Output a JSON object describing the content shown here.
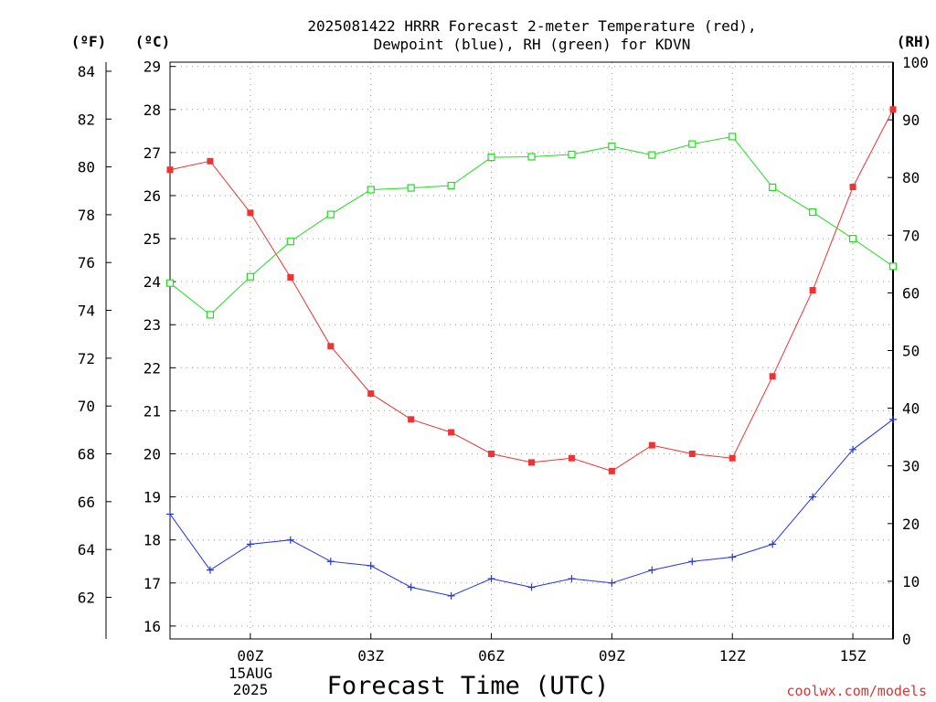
{
  "chart_data": {
    "type": "line",
    "title_line1": "2025081422 HRRR Forecast 2-meter Temperature (red),",
    "title_line2": "Dewpoint (blue), RH (green) for KDVN",
    "xlabel": "Forecast Time (UTC)",
    "credit": "coolwx.com/models",
    "unit_labels": {
      "fahrenheit": "(ºF)",
      "celsius": "(ºC)",
      "rh": "(RH)"
    },
    "x_ticks": [
      "00Z",
      "03Z",
      "06Z",
      "09Z",
      "12Z",
      "15Z"
    ],
    "x_date_lines": [
      "15AUG",
      "2025"
    ],
    "x_hours": [
      -2,
      -1,
      0,
      1,
      2,
      3,
      4,
      5,
      6,
      7,
      8,
      9,
      10,
      11,
      12,
      13,
      14,
      15,
      16
    ],
    "celsius_ticks": [
      16,
      17,
      18,
      19,
      20,
      21,
      22,
      23,
      24,
      25,
      26,
      27,
      28,
      29
    ],
    "fahrenheit_ticks": [
      62,
      64,
      66,
      68,
      70,
      72,
      74,
      76,
      78,
      80,
      82,
      84
    ],
    "rh_ticks": [
      0,
      10,
      20,
      30,
      40,
      50,
      60,
      70,
      80,
      90,
      100
    ],
    "ylim_celsius": [
      15.7,
      29.1
    ],
    "ylim_rh": [
      0,
      100
    ],
    "grid": true,
    "series": [
      {
        "name": "Temperature",
        "axis": "celsius",
        "color": "#ee3333",
        "marker": "filled-square",
        "values": [
          26.6,
          26.8,
          25.6,
          24.1,
          22.5,
          21.4,
          20.8,
          20.5,
          20.0,
          19.8,
          19.9,
          19.6,
          20.2,
          20.0,
          19.9,
          21.8,
          23.8,
          26.2,
          28.0
        ]
      },
      {
        "name": "Dewpoint",
        "axis": "celsius",
        "color": "#2233ee",
        "marker": "plus",
        "values": [
          18.6,
          17.3,
          17.9,
          18.0,
          17.5,
          17.4,
          16.9,
          16.7,
          17.1,
          16.9,
          17.1,
          17.0,
          17.3,
          17.5,
          17.6,
          17.9,
          19.0,
          20.1,
          20.8
        ]
      },
      {
        "name": "RH",
        "axis": "rh",
        "color": "#22dd22",
        "marker": "open-square",
        "values": [
          61.7,
          56.2,
          62.8,
          68.9,
          73.6,
          77.9,
          78.2,
          78.6,
          83.5,
          83.6,
          84.0,
          85.4,
          83.9,
          85.8,
          87.1,
          78.3,
          74.0,
          69.4,
          64.6
        ]
      }
    ]
  }
}
